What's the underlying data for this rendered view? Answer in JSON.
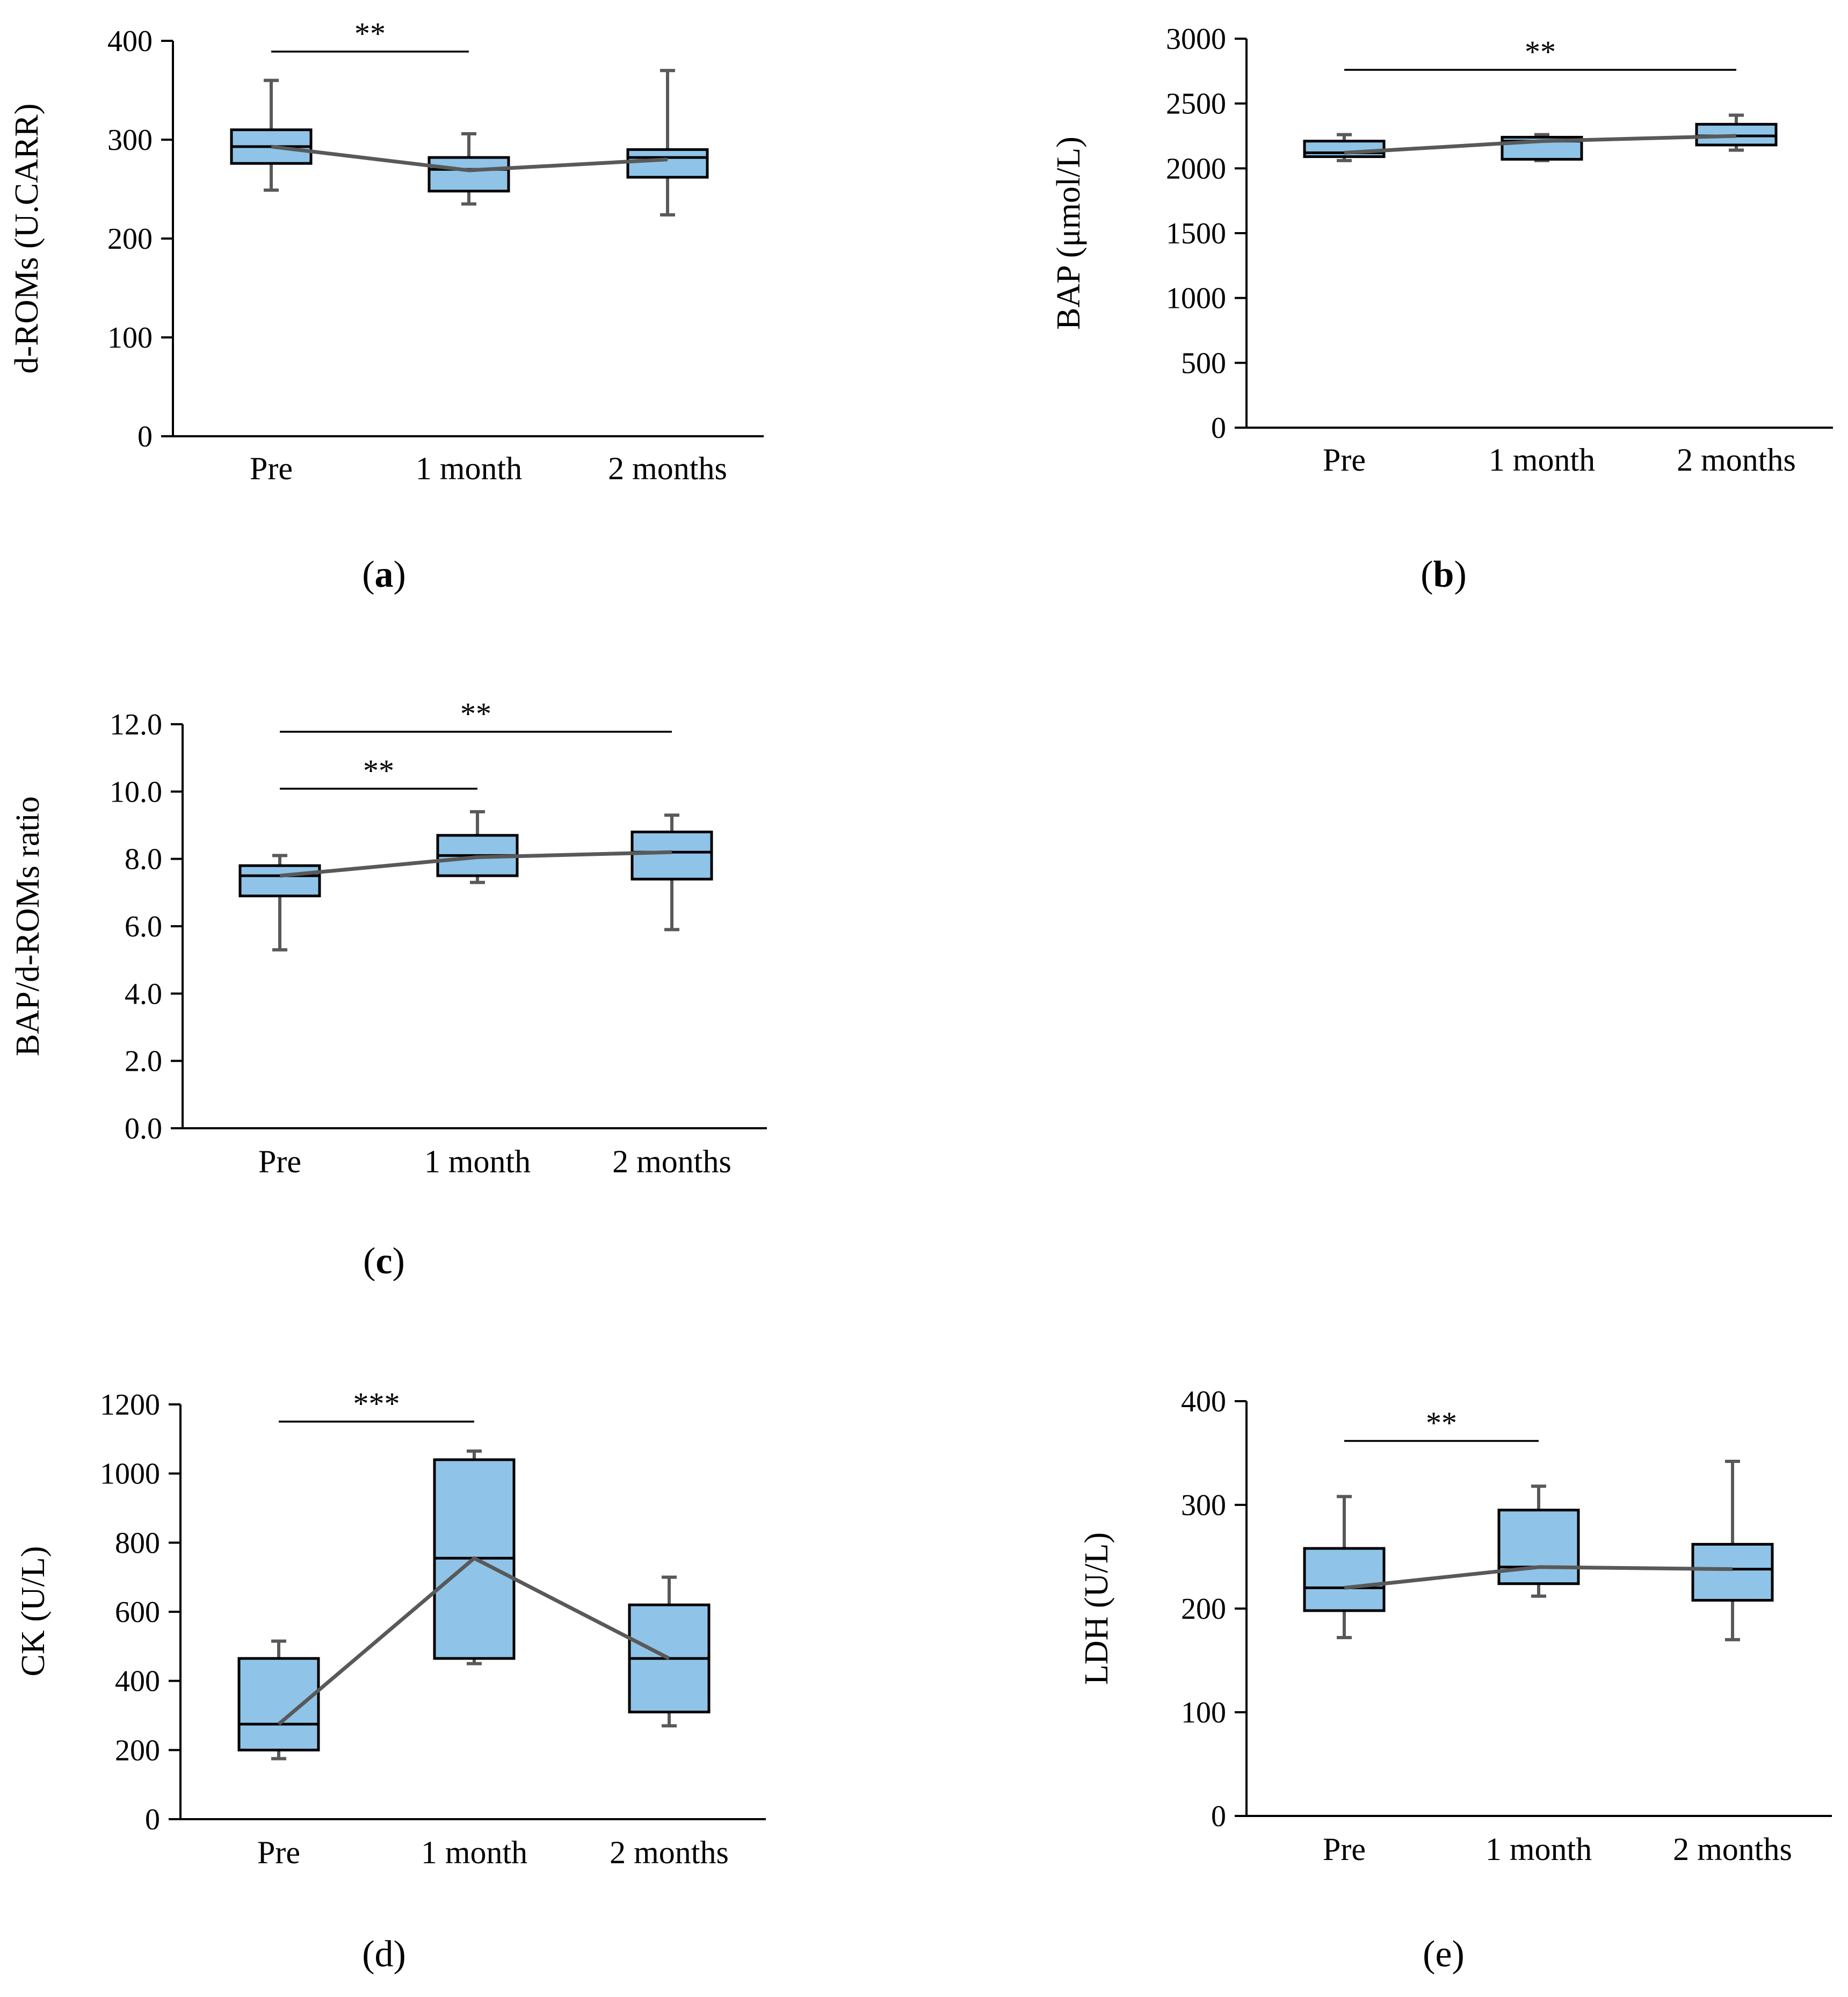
{
  "colors": {
    "box_fill": "#8fc4e8",
    "box_stroke": "#000000",
    "whisker": "#595959",
    "mean_line": "#595959",
    "axis": "#000000"
  },
  "chart_data": [
    {
      "type": "box",
      "panel_label": "(a)",
      "panel_letter": "a",
      "panel_bold": true,
      "ylabel": "d-ROMs (U.CARR)",
      "ylim": [
        0,
        400
      ],
      "yticks": [
        0,
        100,
        200,
        300,
        400
      ],
      "ytick_labels": [
        "0",
        "100",
        "200",
        "300",
        "400"
      ],
      "categories": [
        "Pre",
        "1 month",
        "2 months"
      ],
      "boxes": [
        {
          "category": "Pre",
          "min": 249,
          "q1": 276,
          "median": 293,
          "q3": 310,
          "max": 360
        },
        {
          "category": "1 month",
          "min": 235,
          "q1": 248,
          "median": 270,
          "q3": 282,
          "max": 306
        },
        {
          "category": "2 months",
          "min": 224,
          "q1": 262,
          "median": 282,
          "q3": 290,
          "max": 370
        }
      ],
      "mean_line": [
        293,
        269,
        280
      ],
      "significance": [
        {
          "from": 0,
          "to": 1,
          "label": "**"
        }
      ]
    },
    {
      "type": "box",
      "panel_label": "(b)",
      "panel_letter": "b",
      "panel_bold": true,
      "ylabel": "BAP (μmol/L)",
      "ylim": [
        0,
        3000
      ],
      "yticks": [
        0,
        500,
        1000,
        1500,
        2000,
        2500,
        3000
      ],
      "ytick_labels": [
        "0",
        "500",
        "1000",
        "1500",
        "2000",
        "2500",
        "3000"
      ],
      "categories": [
        "Pre",
        "1 month",
        "2 months"
      ],
      "boxes": [
        {
          "category": "Pre",
          "min": 2060,
          "q1": 2090,
          "median": 2120,
          "q3": 2210,
          "max": 2260
        },
        {
          "category": "1 month",
          "min": 2060,
          "q1": 2070,
          "median": 2210,
          "q3": 2240,
          "max": 2260
        },
        {
          "category": "2 months",
          "min": 2140,
          "q1": 2180,
          "median": 2250,
          "q3": 2340,
          "max": 2410
        }
      ],
      "mean_line": [
        2120,
        2210,
        2250
      ],
      "significance": [
        {
          "from": 0,
          "to": 2,
          "label": "**"
        }
      ]
    },
    {
      "type": "box",
      "panel_label": "(c)",
      "panel_letter": "c",
      "panel_bold": true,
      "ylabel": "BAP/d-ROMs ratio",
      "ylim": [
        0,
        12
      ],
      "yticks": [
        0,
        2,
        4,
        6,
        8,
        10,
        12
      ],
      "ytick_labels": [
        "0.0",
        "2.0",
        "4.0",
        "6.0",
        "8.0",
        "10.0",
        "12.0"
      ],
      "categories": [
        "Pre",
        "1 month",
        "2 months"
      ],
      "boxes": [
        {
          "category": "Pre",
          "min": 5.3,
          "q1": 6.9,
          "median": 7.5,
          "q3": 7.8,
          "max": 8.1
        },
        {
          "category": "1 month",
          "min": 7.3,
          "q1": 7.5,
          "median": 8.1,
          "q3": 8.7,
          "max": 9.4
        },
        {
          "category": "2 months",
          "min": 5.9,
          "q1": 7.4,
          "median": 8.2,
          "q3": 8.8,
          "max": 9.3
        }
      ],
      "mean_line": [
        7.5,
        8.05,
        8.2
      ],
      "significance": [
        {
          "from": 0,
          "to": 1,
          "label": "**",
          "level": 0
        },
        {
          "from": 0,
          "to": 2,
          "label": "**",
          "level": 1
        }
      ]
    },
    {
      "type": "box",
      "panel_label": "(d)",
      "panel_letter": "d",
      "panel_bold": false,
      "ylabel": "CK (U/L)",
      "ylim": [
        0,
        1200
      ],
      "yticks": [
        0,
        200,
        400,
        600,
        800,
        1000,
        1200
      ],
      "ytick_labels": [
        "0",
        "200",
        "400",
        "600",
        "800",
        "1000",
        "1200"
      ],
      "categories": [
        "Pre",
        "1 month",
        "2 months"
      ],
      "boxes": [
        {
          "category": "Pre",
          "min": 175,
          "q1": 200,
          "median": 275,
          "q3": 465,
          "max": 515
        },
        {
          "category": "1 month",
          "min": 450,
          "q1": 465,
          "median": 755,
          "q3": 1040,
          "max": 1065
        },
        {
          "category": "2 months",
          "min": 270,
          "q1": 310,
          "median": 465,
          "q3": 620,
          "max": 700
        }
      ],
      "mean_line": [
        275,
        755,
        465
      ],
      "significance": [
        {
          "from": 0,
          "to": 1,
          "label": "***"
        }
      ]
    },
    {
      "type": "box",
      "panel_label": "(e)",
      "panel_letter": "e",
      "panel_bold": false,
      "ylabel": "LDH (U/L)",
      "ylim": [
        0,
        400
      ],
      "yticks": [
        0,
        100,
        200,
        300,
        400
      ],
      "ytick_labels": [
        "0",
        "100",
        "200",
        "300",
        "400"
      ],
      "categories": [
        "Pre",
        "1 month",
        "2 months"
      ],
      "boxes": [
        {
          "category": "Pre",
          "min": 172,
          "q1": 198,
          "median": 220,
          "q3": 258,
          "max": 308
        },
        {
          "category": "1 month",
          "min": 212,
          "q1": 224,
          "median": 240,
          "q3": 295,
          "max": 318
        },
        {
          "category": "2 months",
          "min": 170,
          "q1": 208,
          "median": 238,
          "q3": 262,
          "max": 342
        }
      ],
      "mean_line": [
        220,
        240,
        238
      ],
      "significance": [
        {
          "from": 0,
          "to": 1,
          "label": "**"
        }
      ]
    }
  ]
}
